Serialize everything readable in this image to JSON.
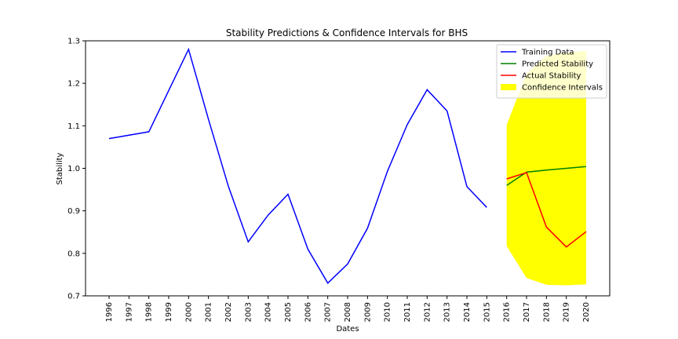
{
  "chart_data": {
    "type": "line",
    "title": "Stability Predictions & Confidence Intervals for BHS",
    "xlabel": "Dates",
    "ylabel": "Stability",
    "x": [
      "1996",
      "1997",
      "1998",
      "1999",
      "2000",
      "2001",
      "2002",
      "2003",
      "2004",
      "2005",
      "2006",
      "2007",
      "2008",
      "2009",
      "2010",
      "2011",
      "2012",
      "2013",
      "2014",
      "2015",
      "2016",
      "2017",
      "2018",
      "2019",
      "2020"
    ],
    "ylim": [
      0.7,
      1.3
    ],
    "yticks": [
      "0.7",
      "0.8",
      "0.9",
      "1.0",
      "1.1",
      "1.2",
      "1.3"
    ],
    "legend_position": "top-right",
    "grid": false,
    "series": [
      {
        "name": "Training Data",
        "color": "#0000ff",
        "x": [
          "1996",
          "1998",
          "2000",
          "2001",
          "2002",
          "2003",
          "2004",
          "2005",
          "2006",
          "2007",
          "2008",
          "2009",
          "2010",
          "2011",
          "2012",
          "2013",
          "2014",
          "2015"
        ],
        "values": [
          1.07,
          1.086,
          1.28,
          1.115,
          0.958,
          0.827,
          0.89,
          0.939,
          0.81,
          0.73,
          0.775,
          0.859,
          0.993,
          1.103,
          1.185,
          1.135,
          0.957,
          0.908
        ]
      },
      {
        "name": "Predicted Stability",
        "color": "#008000",
        "x": [
          "2016",
          "2017",
          "2018",
          "2019",
          "2020"
        ],
        "values": [
          0.96,
          0.991,
          0.996,
          1.0,
          1.004
        ]
      },
      {
        "name": "Actual Stability",
        "color": "#ff0000",
        "x": [
          "2016",
          "2017",
          "2018",
          "2019",
          "2020"
        ],
        "values": [
          0.975,
          0.99,
          0.862,
          0.815,
          0.851
        ]
      }
    ],
    "confidence_interval": {
      "name": "Confidence Intervals",
      "color": "#ffff00",
      "x": [
        "2016",
        "2017",
        "2018",
        "2019",
        "2020"
      ],
      "lower": [
        0.817,
        0.742,
        0.726,
        0.725,
        0.727
      ],
      "upper": [
        1.102,
        1.223,
        1.265,
        1.272,
        1.277
      ]
    }
  }
}
